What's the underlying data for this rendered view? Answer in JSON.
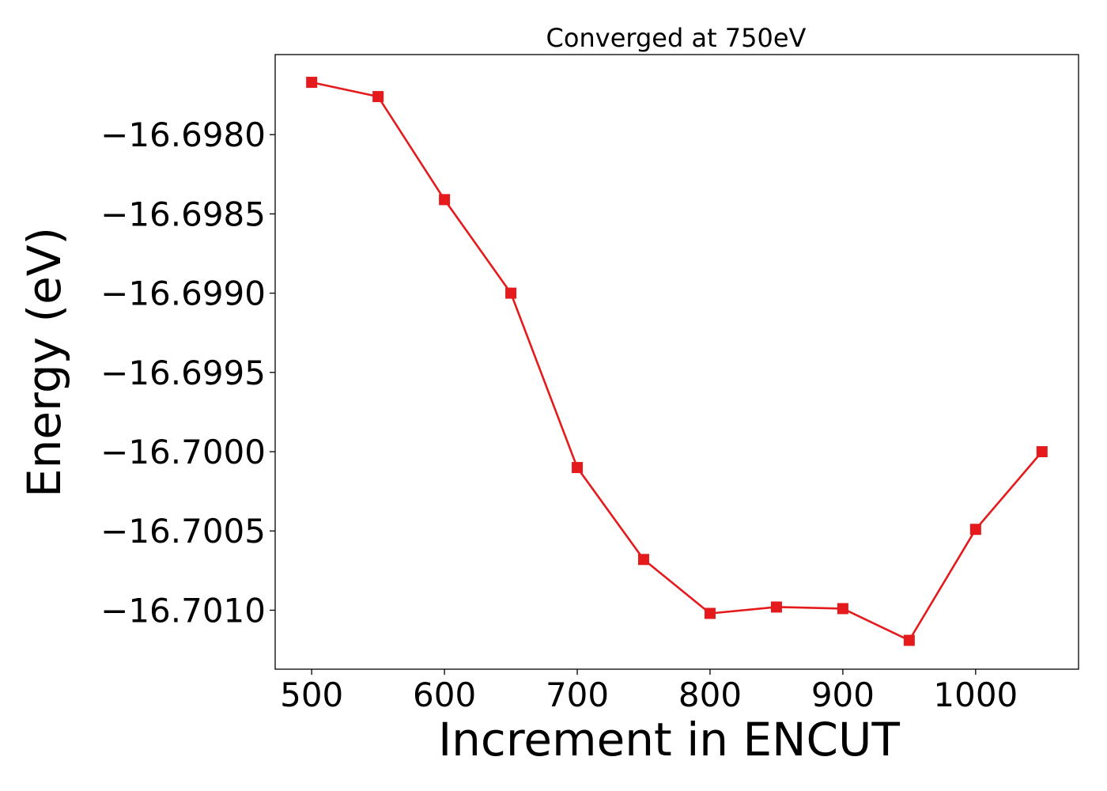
{
  "chart_data": {
    "type": "line",
    "title": "Converged at 750eV",
    "xlabel": "Increment in ENCUT",
    "ylabel": "Energy (eV)",
    "x": [
      500,
      550,
      600,
      650,
      700,
      750,
      800,
      850,
      900,
      950,
      1000,
      1050
    ],
    "series": [
      {
        "values": [
          -16.69767,
          -16.69776,
          -16.69841,
          -16.699,
          -16.7001,
          -16.70068,
          -16.70102,
          -16.70098,
          -16.70099,
          -16.70119,
          -16.70049,
          -16.7
        ],
        "color": "#e41a1c",
        "marker": "square"
      }
    ],
    "xticks": [
      500,
      600,
      700,
      800,
      900,
      1000
    ],
    "xtick_labels": [
      "500",
      "600",
      "700",
      "800",
      "900",
      "1000"
    ],
    "yticks": [
      -16.698,
      -16.6985,
      -16.699,
      -16.6995,
      -16.7,
      -16.7005,
      -16.701
    ],
    "ytick_labels": [
      "−16.6980",
      "−16.6985",
      "−16.6990",
      "−16.6995",
      "−16.7000",
      "−16.7005",
      "−16.7010"
    ],
    "xlim": [
      472.5,
      1077.5
    ],
    "ylim": [
      -16.701372,
      -16.697495
    ],
    "grid": false,
    "legend": "none"
  }
}
